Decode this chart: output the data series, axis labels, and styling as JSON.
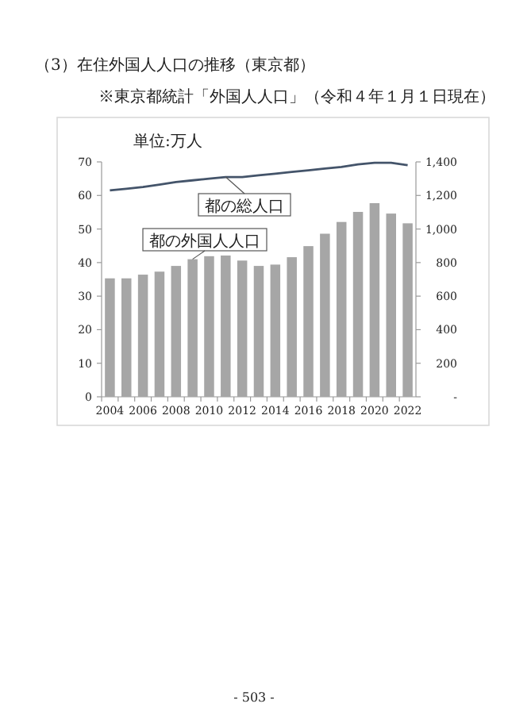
{
  "chart_data": {
    "type": "bar",
    "title": "（3）在住外国人人口の推移（東京都）",
    "subtitle": "※東京都統計「外国人人口」（令和４年１月１日現在）",
    "ylabel": "単位:万人",
    "annotations": [
      "- 503 -"
    ],
    "categories": [
      "2004",
      null,
      "2006",
      null,
      "2008",
      null,
      "2010",
      null,
      "2012",
      null,
      "2014",
      null,
      "2016",
      null,
      "2018",
      null,
      "2020",
      null,
      "2022"
    ],
    "series": [
      {
        "name": "都の外国人人口",
        "color": "#a6a6a6",
        "values": [
          35.3,
          35.3,
          36.4,
          37.3,
          39.0,
          41.0,
          41.9,
          42.1,
          40.6,
          39.0,
          39.4,
          41.6,
          44.9,
          48.6,
          52.1,
          55.1,
          57.7,
          54.6,
          51.7
        ]
      },
      {
        "name": "都の総人口",
        "type": "line",
        "axis": "y2",
        "color": "#44546a",
        "values": [
          1230,
          1240,
          1250,
          1265,
          1280,
          1290,
          1300,
          1310,
          1310,
          1320,
          1330,
          1340,
          1350,
          1360,
          1370,
          1385,
          1395,
          1395,
          1380
        ]
      }
    ],
    "ylim": [
      0,
      70
    ],
    "yticks": [
      0,
      10,
      20,
      30,
      40,
      50,
      60,
      70
    ],
    "y2lim": [
      0,
      1400
    ],
    "y2ticks": [
      {
        "value": 0,
        "label": "-"
      },
      200,
      400,
      600,
      800,
      {
        "value": 1000,
        "label": "1,000"
      },
      {
        "value": 1200,
        "label": "1,200"
      },
      {
        "value": 1400,
        "label": "1,400"
      }
    ]
  }
}
